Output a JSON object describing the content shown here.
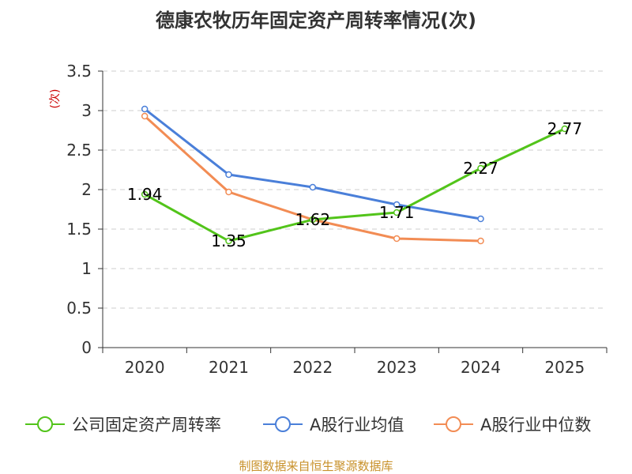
{
  "chart_data": {
    "type": "line",
    "title": "德康农牧历年固定资产周转率情况(次)",
    "ylabel": "(次)",
    "xlabel": "",
    "categories": [
      "2020",
      "2021",
      "2022",
      "2023",
      "2024",
      "2025"
    ],
    "ylim": [
      0,
      3.5
    ],
    "yticks": [
      "0",
      "0.5",
      "1",
      "1.5",
      "2",
      "2.5",
      "3",
      "3.5"
    ],
    "grid": true,
    "legend_position": "bottom",
    "series": [
      {
        "name": "公司固定资产周转率",
        "color": "#52c41a",
        "values": [
          1.94,
          1.35,
          1.62,
          1.71,
          2.27,
          2.77
        ],
        "labels": [
          "1.94",
          "1.35",
          "1.62",
          "1.71",
          "2.27",
          "2.77"
        ]
      },
      {
        "name": "A股行业均值",
        "color": "#4a7fd9",
        "values": [
          3.02,
          2.19,
          2.03,
          1.81,
          1.63,
          null
        ]
      },
      {
        "name": "A股行业中位数",
        "color": "#f28c54",
        "values": [
          2.93,
          1.97,
          1.62,
          1.38,
          1.35,
          null
        ]
      }
    ],
    "source": "制图数据来自恒生聚源数据库"
  }
}
